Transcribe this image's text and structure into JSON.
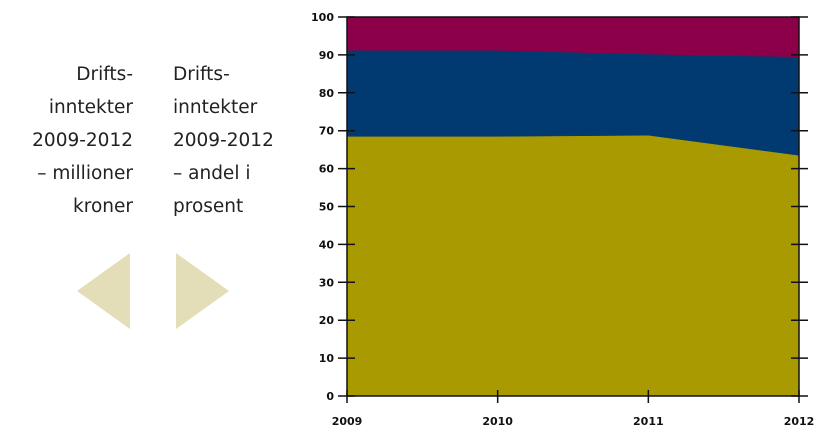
{
  "nav": {
    "prev_label_lines": [
      "Drifts-",
      "inntekter",
      "2009-2012",
      "– millioner",
      "kroner"
    ],
    "next_label_lines": [
      "Drifts-",
      "inntekter",
      "2009-2012",
      "– andel i",
      "prosent"
    ],
    "arrow_color": "#e3ddb8"
  },
  "chart_data": {
    "type": "area",
    "stacked": true,
    "title": "",
    "xlabel": "",
    "ylabel": "",
    "x": [
      "2009",
      "2010",
      "2011",
      "2012"
    ],
    "series": [
      {
        "values": [
          68.5,
          68.5,
          68.8,
          63.5
        ],
        "color": "#a89a00"
      },
      {
        "values": [
          22.7,
          22.7,
          21.4,
          26.0
        ],
        "color": "#003a70"
      },
      {
        "values": [
          8.8,
          8.8,
          9.8,
          10.5
        ],
        "color": "#8c0049"
      }
    ],
    "ylim": [
      0,
      100
    ],
    "yticks": [
      0,
      10,
      20,
      30,
      40,
      50,
      60,
      70,
      80,
      90,
      100
    ],
    "grid": false,
    "legend": "none"
  }
}
